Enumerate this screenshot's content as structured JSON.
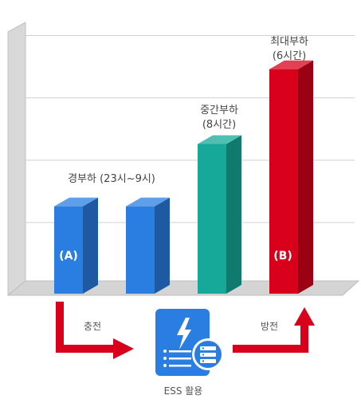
{
  "chart_data": {
    "type": "bar",
    "title": "",
    "xlabel": "",
    "ylabel": "",
    "grid": true,
    "categories": [
      "경부하 (23시~9시)",
      "경부하 (23시~9시)",
      "중간부하 (8시간)",
      "최대부하 (6시간)"
    ],
    "values": [
      1.4,
      1.4,
      2.4,
      3.6
    ],
    "ylim": [
      0,
      4.3
    ],
    "colors": [
      "#2a7de1",
      "#2a7de1",
      "#16a99a",
      "#d9001b"
    ],
    "annotations": {
      "light_load": "경부하 (23시~9시)",
      "mid_load_line1": "중간부하",
      "mid_load_line2": "(8시간)",
      "peak_load_line1": "최대부하",
      "peak_load_line2": "(6시간)",
      "bar_a": "(A)",
      "bar_b": "(B)"
    }
  },
  "flow": {
    "charge": "충전",
    "discharge": "방전",
    "ess_label": "ESS 활용",
    "ess_icon": "ess-battery-server-icon",
    "arrow_color": "#d9001b"
  }
}
